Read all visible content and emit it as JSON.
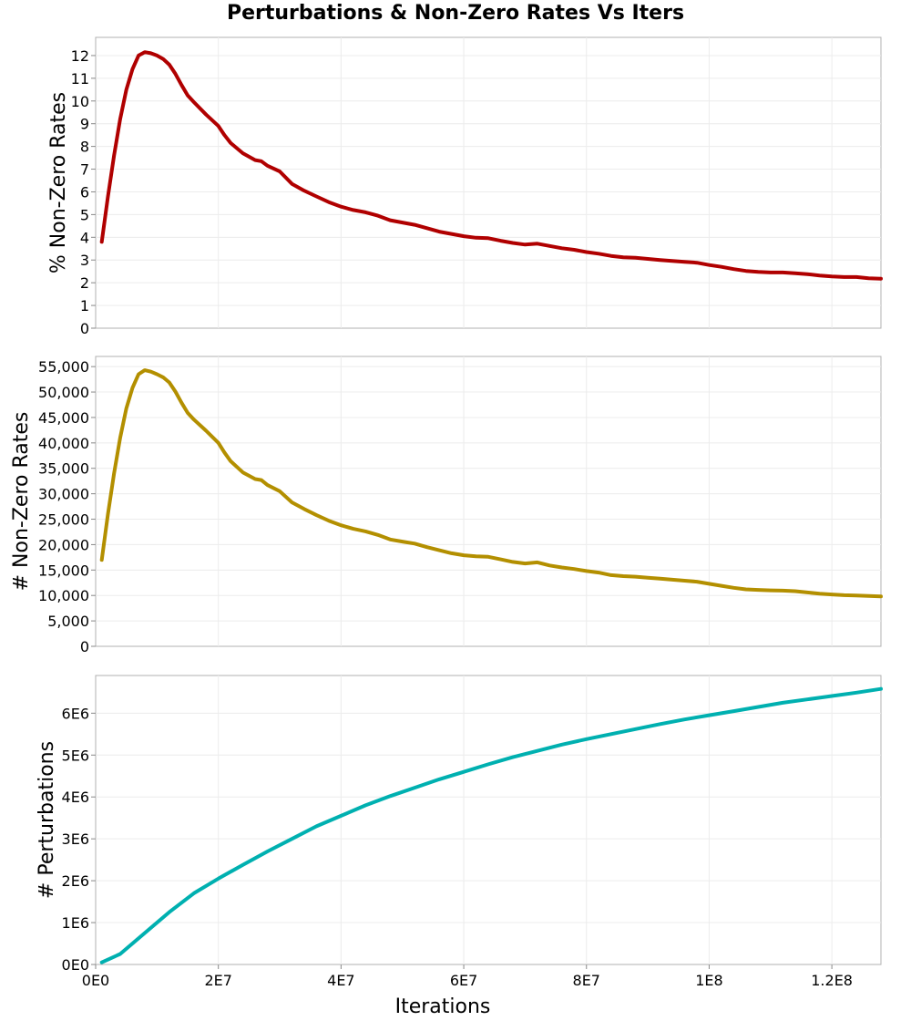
{
  "title": "Perturbations & Non-Zero Rates Vs Iters",
  "chart_data": [
    {
      "type": "line",
      "name": "pct",
      "ylabel": "% Non-Zero Rates",
      "ylim": [
        0,
        12.8
      ],
      "xlim": [
        0,
        128000000
      ],
      "yticks": [
        0,
        1,
        2,
        3,
        4,
        5,
        6,
        7,
        8,
        9,
        10,
        11,
        12
      ],
      "yticklabels": [
        "0",
        "1",
        "2",
        "3",
        "4",
        "5",
        "6",
        "7",
        "8",
        "9",
        "10",
        "11",
        "12"
      ],
      "color": "#b00000",
      "grid": true,
      "series": [
        {
          "name": "% Non-Zero Rates",
          "x": [
            1000000,
            2000000,
            3000000,
            4000000,
            5000000,
            6000000,
            7000000,
            8000000,
            9000000,
            10000000,
            11000000,
            12000000,
            13000000,
            14000000,
            15000000,
            16000000,
            18000000,
            20000000,
            21000000,
            22000000,
            24000000,
            26000000,
            27000000,
            28000000,
            30000000,
            32000000,
            34000000,
            36000000,
            38000000,
            40000000,
            42000000,
            44000000,
            46000000,
            48000000,
            50000000,
            52000000,
            54000000,
            56000000,
            58000000,
            60000000,
            62000000,
            64000000,
            66000000,
            68000000,
            70000000,
            72000000,
            74000000,
            76000000,
            78000000,
            80000000,
            82000000,
            84000000,
            86000000,
            88000000,
            90000000,
            92000000,
            94000000,
            96000000,
            98000000,
            100000000,
            102000000,
            104000000,
            106000000,
            108000000,
            110000000,
            112000000,
            114000000,
            116000000,
            118000000,
            120000000,
            122000000,
            124000000,
            126000000,
            128000000
          ],
          "values": [
            3.8,
            5.8,
            7.6,
            9.2,
            10.5,
            11.4,
            12.0,
            12.15,
            12.1,
            12.0,
            11.85,
            11.6,
            11.2,
            10.7,
            10.25,
            9.95,
            9.4,
            8.9,
            8.5,
            8.15,
            7.7,
            7.4,
            7.35,
            7.15,
            6.9,
            6.35,
            6.05,
            5.8,
            5.55,
            5.35,
            5.2,
            5.1,
            4.95,
            4.75,
            4.65,
            4.55,
            4.4,
            4.25,
            4.15,
            4.05,
            3.98,
            3.96,
            3.85,
            3.75,
            3.68,
            3.72,
            3.62,
            3.52,
            3.45,
            3.35,
            3.28,
            3.18,
            3.12,
            3.1,
            3.05,
            3.0,
            2.96,
            2.92,
            2.88,
            2.78,
            2.7,
            2.6,
            2.52,
            2.48,
            2.45,
            2.45,
            2.42,
            2.38,
            2.32,
            2.28,
            2.25,
            2.25,
            2.2,
            2.18
          ]
        }
      ]
    },
    {
      "type": "line",
      "name": "count",
      "ylabel": "# Non-Zero Rates",
      "ylim": [
        0,
        57000
      ],
      "xlim": [
        0,
        128000000
      ],
      "yticks": [
        0,
        5000,
        10000,
        15000,
        20000,
        25000,
        30000,
        35000,
        40000,
        45000,
        50000,
        55000
      ],
      "yticklabels": [
        "0",
        "5,000",
        "10,000",
        "15,000",
        "20,000",
        "25,000",
        "30,000",
        "35,000",
        "40,000",
        "45,000",
        "50,000",
        "55,000"
      ],
      "color": "#b38f00",
      "grid": true,
      "series": [
        {
          "name": "# Non-Zero Rates",
          "x": [
            1000000,
            2000000,
            3000000,
            4000000,
            5000000,
            6000000,
            7000000,
            8000000,
            9000000,
            10000000,
            11000000,
            12000000,
            13000000,
            14000000,
            15000000,
            16000000,
            18000000,
            20000000,
            21000000,
            22000000,
            24000000,
            26000000,
            27000000,
            28000000,
            30000000,
            32000000,
            34000000,
            36000000,
            38000000,
            40000000,
            42000000,
            44000000,
            46000000,
            48000000,
            50000000,
            52000000,
            54000000,
            56000000,
            58000000,
            60000000,
            62000000,
            64000000,
            66000000,
            68000000,
            70000000,
            72000000,
            74000000,
            76000000,
            78000000,
            80000000,
            82000000,
            84000000,
            86000000,
            88000000,
            90000000,
            92000000,
            94000000,
            96000000,
            98000000,
            100000000,
            102000000,
            104000000,
            106000000,
            108000000,
            110000000,
            112000000,
            114000000,
            116000000,
            118000000,
            120000000,
            122000000,
            124000000,
            126000000,
            128000000
          ],
          "values": [
            17000,
            26000,
            34000,
            41000,
            46800,
            50800,
            53500,
            54300,
            54000,
            53500,
            52900,
            51900,
            50100,
            47900,
            45900,
            44600,
            42400,
            40000,
            38100,
            36400,
            34200,
            32900,
            32700,
            31700,
            30500,
            28300,
            27000,
            25800,
            24700,
            23800,
            23100,
            22600,
            21900,
            21000,
            20600,
            20200,
            19500,
            18900,
            18300,
            17900,
            17700,
            17600,
            17100,
            16600,
            16300,
            16500,
            15900,
            15500,
            15200,
            14800,
            14500,
            14000,
            13800,
            13700,
            13500,
            13300,
            13100,
            12900,
            12700,
            12300,
            11900,
            11500,
            11200,
            11100,
            11000,
            10950,
            10850,
            10600,
            10350,
            10200,
            10050,
            10000,
            9900,
            9800
          ]
        }
      ]
    },
    {
      "type": "line",
      "name": "perturb",
      "ylabel": "# Perturbations",
      "xlabel": "Iterations",
      "ylim": [
        0,
        6900000
      ],
      "xlim": [
        0,
        128000000
      ],
      "yticks": [
        0,
        1000000,
        2000000,
        3000000,
        4000000,
        5000000,
        6000000
      ],
      "yticklabels": [
        "0E0",
        "1E6",
        "2E6",
        "3E6",
        "4E6",
        "5E6",
        "6E6"
      ],
      "xticks": [
        0,
        20000000,
        40000000,
        60000000,
        80000000,
        100000000,
        120000000
      ],
      "xticklabels": [
        "0E0",
        "2E7",
        "4E7",
        "6E7",
        "8E7",
        "1E8",
        "1.2E8"
      ],
      "color": "#00b0b0",
      "grid": true,
      "series": [
        {
          "name": "# Perturbations",
          "x": [
            1000000,
            4000000,
            8000000,
            12000000,
            16000000,
            20000000,
            24000000,
            28000000,
            32000000,
            36000000,
            40000000,
            44000000,
            48000000,
            52000000,
            56000000,
            60000000,
            64000000,
            68000000,
            72000000,
            76000000,
            80000000,
            84000000,
            88000000,
            92000000,
            96000000,
            100000000,
            104000000,
            108000000,
            112000000,
            116000000,
            120000000,
            124000000,
            128000000
          ],
          "values": [
            50000,
            250000,
            750000,
            1250000,
            1700000,
            2050000,
            2380000,
            2700000,
            3000000,
            3300000,
            3550000,
            3800000,
            4020000,
            4220000,
            4420000,
            4600000,
            4780000,
            4950000,
            5100000,
            5250000,
            5380000,
            5500000,
            5620000,
            5740000,
            5850000,
            5950000,
            6050000,
            6150000,
            6250000,
            6330000,
            6410000,
            6490000,
            6580000
          ]
        }
      ]
    }
  ]
}
